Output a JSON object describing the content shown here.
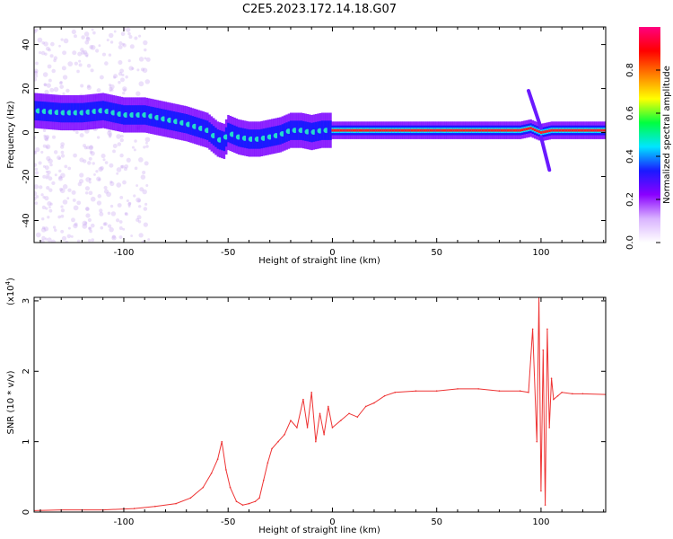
{
  "title": "C2E5.2023.172.14.18.G07",
  "chart_data": [
    {
      "type": "heatmap",
      "title": "C2E5.2023.172.14.18.G07",
      "xlabel": "Height of straight line (km)",
      "ylabel": "Frequency (Hz)",
      "xlim": [
        -143,
        131
      ],
      "ylim": [
        -50,
        48
      ],
      "xticks": [
        -100,
        -50,
        0,
        50,
        100
      ],
      "yticks": [
        -40,
        -20,
        0,
        20,
        40
      ],
      "colorbar": {
        "label": "Normalized spectral amplitude",
        "range": [
          0.0,
          1.0
        ],
        "ticks": [
          0.0,
          0.2,
          0.4,
          0.6,
          0.8
        ],
        "colormap": [
          "#ffffff",
          "#d9b3ff",
          "#8a00ff",
          "#1a1aff",
          "#00e5ff",
          "#00ff40",
          "#ffff00",
          "#ff8000",
          "#ff0000",
          "#ff0080"
        ]
      },
      "ridge": {
        "x": [
          -143,
          -130,
          -120,
          -110,
          -100,
          -90,
          -80,
          -70,
          -60,
          -55,
          -52,
          -50,
          -45,
          -40,
          -35,
          -30,
          -25,
          -20,
          -15,
          -10,
          -5,
          0,
          20,
          50,
          90,
          95,
          100,
          105,
          110,
          120,
          131
        ],
        "y": [
          10,
          9,
          9,
          10,
          8,
          8,
          6,
          4,
          1,
          -3,
          -4,
          0,
          -2,
          -3,
          -3,
          -2,
          -1,
          1,
          1,
          0,
          1,
          1,
          1,
          1,
          1,
          2,
          0,
          1,
          1,
          1,
          1
        ]
      }
    },
    {
      "type": "line",
      "xlabel": "Height of straight line (km)",
      "ylabel": "SNR (10 * v/v)",
      "yscale_label": "(x10",
      "yscale_exp": "4",
      "xlim": [
        -143,
        131
      ],
      "ylim": [
        0,
        3.05
      ],
      "xticks": [
        -100,
        -50,
        0,
        50,
        100
      ],
      "yticks": [
        0,
        1,
        2,
        3
      ],
      "color": "#ee3333",
      "series": [
        {
          "x": [
            -143,
            -130,
            -110,
            -95,
            -85,
            -75,
            -68,
            -62,
            -58,
            -55,
            -53,
            -51,
            -49,
            -46,
            -43,
            -40,
            -37,
            -35,
            -33,
            -31,
            -29,
            -26,
            -23,
            -20,
            -17,
            -14,
            -12,
            -10,
            -8,
            -6,
            -4,
            -2,
            0,
            4,
            8,
            12,
            16,
            20,
            25,
            30,
            40,
            50,
            60,
            70,
            80,
            90,
            94,
            96,
            98,
            99,
            100,
            101,
            102,
            103,
            104,
            105,
            106,
            108,
            110,
            115,
            120,
            131
          ],
          "y": [
            0.02,
            0.03,
            0.03,
            0.05,
            0.08,
            0.12,
            0.2,
            0.35,
            0.55,
            0.75,
            1.0,
            0.6,
            0.35,
            0.15,
            0.1,
            0.12,
            0.15,
            0.2,
            0.45,
            0.7,
            0.9,
            1.0,
            1.1,
            1.3,
            1.2,
            1.6,
            1.2,
            1.7,
            1.0,
            1.4,
            1.1,
            1.5,
            1.2,
            1.3,
            1.4,
            1.35,
            1.5,
            1.55,
            1.65,
            1.7,
            1.72,
            1.72,
            1.75,
            1.75,
            1.72,
            1.72,
            1.7,
            2.6,
            1.0,
            3.05,
            0.3,
            2.3,
            0.1,
            2.6,
            1.2,
            1.9,
            1.6,
            1.65,
            1.7,
            1.68,
            1.68,
            1.67
          ]
        }
      ]
    }
  ]
}
